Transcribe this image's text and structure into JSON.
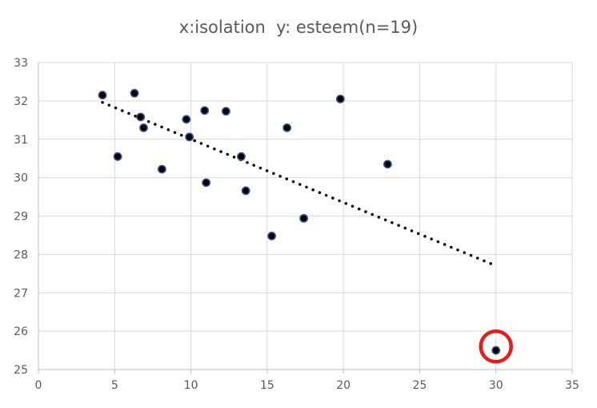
{
  "chart_data": {
    "type": "scatter",
    "title": "x:isolation  y: esteem(n=19)",
    "xlabel": "",
    "ylabel": "",
    "xlim": [
      0,
      35
    ],
    "ylim": [
      25,
      33
    ],
    "x_ticks": [
      0,
      5,
      10,
      15,
      20,
      25,
      30,
      35
    ],
    "y_ticks": [
      25,
      26,
      27,
      28,
      29,
      30,
      31,
      32,
      33
    ],
    "grid": true,
    "legend": "none",
    "series": [
      {
        "points": [
          {
            "x": 4.2,
            "y": 32.15
          },
          {
            "x": 5.2,
            "y": 30.55
          },
          {
            "x": 6.3,
            "y": 32.2
          },
          {
            "x": 6.7,
            "y": 31.58
          },
          {
            "x": 6.9,
            "y": 31.3
          },
          {
            "x": 8.1,
            "y": 30.22
          },
          {
            "x": 9.7,
            "y": 31.52
          },
          {
            "x": 9.9,
            "y": 31.06
          },
          {
            "x": 10.9,
            "y": 31.75
          },
          {
            "x": 11.0,
            "y": 29.87
          },
          {
            "x": 12.3,
            "y": 31.73
          },
          {
            "x": 13.3,
            "y": 30.55
          },
          {
            "x": 13.6,
            "y": 29.66
          },
          {
            "x": 15.3,
            "y": 28.48
          },
          {
            "x": 16.3,
            "y": 31.3
          },
          {
            "x": 17.4,
            "y": 28.94
          },
          {
            "x": 19.8,
            "y": 32.05
          },
          {
            "x": 22.9,
            "y": 30.35
          },
          {
            "x": 30.0,
            "y": 25.5
          }
        ],
        "marker_fill": "#000000",
        "marker_edge": "#2f5597"
      }
    ],
    "trendline": {
      "style": "dotted",
      "color": "#000000",
      "from": {
        "x": 4.2,
        "y": 31.96
      },
      "to": {
        "x": 29.9,
        "y": 27.72
      }
    },
    "annotation": {
      "shape": "circle",
      "color": "#e81b1b",
      "center": {
        "x": 30.0,
        "y": 25.6
      }
    },
    "colors": {
      "grid": "#d9d9d9",
      "axis": "#bfbfbf",
      "text": "#595959"
    }
  }
}
